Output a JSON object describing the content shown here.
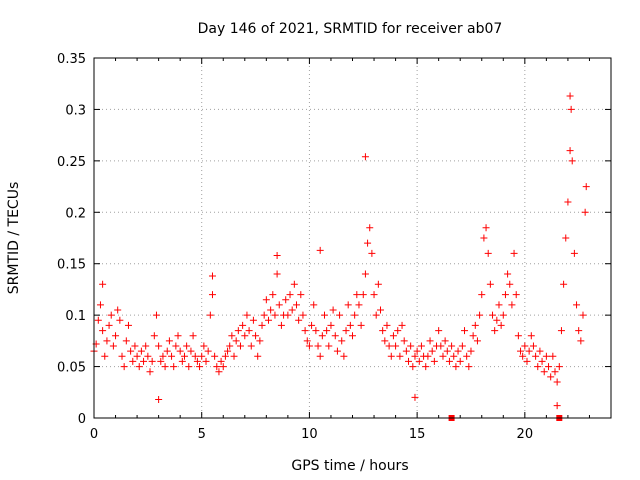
{
  "chart_data": {
    "type": "scatter",
    "title": "Day 146 of 2021, SRMTID for receiver ab07",
    "xlabel": "GPS time / hours",
    "ylabel": "SRMTID / TECUs",
    "xlim": [
      0,
      24
    ],
    "ylim": [
      0,
      0.35
    ],
    "xticks": [
      0,
      5,
      10,
      15,
      20
    ],
    "xtick_labels": [
      "0",
      "5",
      "10",
      "15",
      "20"
    ],
    "yticks": [
      0,
      0.05,
      0.1,
      0.15,
      0.2,
      0.25,
      0.3,
      0.35
    ],
    "ytick_labels": [
      "0",
      "0.05",
      "0.1",
      "0.15",
      "0.2",
      "0.25",
      "0.3",
      "0.35"
    ],
    "grid": true,
    "marker": "+",
    "color": "#ff0000",
    "series": [
      {
        "name": "SRMTID",
        "points": [
          [
            0.0,
            0.065
          ],
          [
            0.1,
            0.072
          ],
          [
            0.2,
            0.095
          ],
          [
            0.3,
            0.11
          ],
          [
            0.4,
            0.085
          ],
          [
            0.5,
            0.06
          ],
          [
            0.6,
            0.075
          ],
          [
            0.7,
            0.09
          ],
          [
            0.8,
            0.1
          ],
          [
            0.9,
            0.07
          ],
          [
            1.0,
            0.08
          ],
          [
            1.1,
            0.105
          ],
          [
            1.2,
            0.095
          ],
          [
            1.3,
            0.06
          ],
          [
            1.4,
            0.05
          ],
          [
            1.5,
            0.075
          ],
          [
            1.6,
            0.09
          ],
          [
            1.7,
            0.065
          ],
          [
            1.8,
            0.055
          ],
          [
            1.9,
            0.07
          ],
          [
            2.0,
            0.06
          ],
          [
            2.1,
            0.05
          ],
          [
            2.2,
            0.065
          ],
          [
            2.3,
            0.055
          ],
          [
            2.4,
            0.07
          ],
          [
            2.5,
            0.06
          ],
          [
            2.6,
            0.045
          ],
          [
            2.7,
            0.055
          ],
          [
            2.8,
            0.08
          ],
          [
            2.9,
            0.1
          ],
          [
            3.0,
            0.07
          ],
          [
            3.1,
            0.055
          ],
          [
            3.2,
            0.06
          ],
          [
            3.3,
            0.05
          ],
          [
            3.4,
            0.065
          ],
          [
            3.5,
            0.075
          ],
          [
            3.6,
            0.06
          ],
          [
            3.7,
            0.05
          ],
          [
            3.8,
            0.07
          ],
          [
            3.9,
            0.08
          ],
          [
            4.0,
            0.065
          ],
          [
            4.1,
            0.055
          ],
          [
            4.2,
            0.06
          ],
          [
            4.3,
            0.07
          ],
          [
            4.4,
            0.05
          ],
          [
            4.5,
            0.065
          ],
          [
            4.6,
            0.08
          ],
          [
            4.7,
            0.06
          ],
          [
            4.8,
            0.055
          ],
          [
            4.9,
            0.05
          ],
          [
            5.0,
            0.06
          ],
          [
            5.1,
            0.07
          ],
          [
            5.2,
            0.055
          ],
          [
            5.3,
            0.065
          ],
          [
            5.4,
            0.1
          ],
          [
            5.5,
            0.12
          ],
          [
            5.6,
            0.06
          ],
          [
            5.7,
            0.05
          ],
          [
            5.8,
            0.045
          ],
          [
            5.9,
            0.055
          ],
          [
            6.0,
            0.05
          ],
          [
            6.1,
            0.06
          ],
          [
            6.2,
            0.065
          ],
          [
            6.3,
            0.07
          ],
          [
            6.4,
            0.08
          ],
          [
            6.5,
            0.06
          ],
          [
            6.6,
            0.075
          ],
          [
            6.7,
            0.085
          ],
          [
            6.8,
            0.07
          ],
          [
            6.9,
            0.09
          ],
          [
            7.0,
            0.08
          ],
          [
            7.1,
            0.1
          ],
          [
            7.2,
            0.085
          ],
          [
            7.3,
            0.07
          ],
          [
            7.4,
            0.095
          ],
          [
            7.5,
            0.08
          ],
          [
            7.6,
            0.06
          ],
          [
            7.7,
            0.075
          ],
          [
            7.8,
            0.09
          ],
          [
            7.9,
            0.1
          ],
          [
            8.0,
            0.115
          ],
          [
            8.1,
            0.095
          ],
          [
            8.2,
            0.105
          ],
          [
            8.3,
            0.12
          ],
          [
            8.4,
            0.1
          ],
          [
            8.5,
            0.14
          ],
          [
            8.6,
            0.11
          ],
          [
            8.7,
            0.09
          ],
          [
            8.8,
            0.1
          ],
          [
            8.9,
            0.115
          ],
          [
            9.0,
            0.1
          ],
          [
            9.1,
            0.12
          ],
          [
            9.2,
            0.105
          ],
          [
            9.3,
            0.13
          ],
          [
            9.4,
            0.11
          ],
          [
            9.5,
            0.095
          ],
          [
            9.6,
            0.12
          ],
          [
            9.7,
            0.1
          ],
          [
            9.8,
            0.085
          ],
          [
            9.9,
            0.075
          ],
          [
            10.0,
            0.07
          ],
          [
            10.1,
            0.09
          ],
          [
            10.2,
            0.11
          ],
          [
            10.3,
            0.085
          ],
          [
            10.4,
            0.07
          ],
          [
            10.5,
            0.06
          ],
          [
            10.6,
            0.08
          ],
          [
            10.7,
            0.1
          ],
          [
            10.8,
            0.085
          ],
          [
            10.9,
            0.07
          ],
          [
            11.0,
            0.09
          ],
          [
            11.1,
            0.105
          ],
          [
            11.2,
            0.08
          ],
          [
            11.3,
            0.065
          ],
          [
            11.4,
            0.1
          ],
          [
            11.5,
            0.075
          ],
          [
            11.6,
            0.06
          ],
          [
            11.7,
            0.085
          ],
          [
            11.8,
            0.11
          ],
          [
            11.9,
            0.09
          ],
          [
            12.0,
            0.08
          ],
          [
            12.1,
            0.1
          ],
          [
            12.2,
            0.12
          ],
          [
            12.3,
            0.11
          ],
          [
            12.4,
            0.09
          ],
          [
            12.5,
            0.12
          ],
          [
            12.6,
            0.14
          ],
          [
            12.7,
            0.17
          ],
          [
            12.8,
            0.185
          ],
          [
            12.9,
            0.16
          ],
          [
            13.0,
            0.12
          ],
          [
            13.1,
            0.1
          ],
          [
            13.2,
            0.13
          ],
          [
            13.3,
            0.105
          ],
          [
            13.4,
            0.085
          ],
          [
            13.5,
            0.075
          ],
          [
            13.6,
            0.09
          ],
          [
            13.7,
            0.07
          ],
          [
            13.8,
            0.06
          ],
          [
            13.9,
            0.08
          ],
          [
            14.0,
            0.07
          ],
          [
            14.1,
            0.085
          ],
          [
            14.2,
            0.06
          ],
          [
            14.3,
            0.09
          ],
          [
            14.4,
            0.075
          ],
          [
            14.5,
            0.065
          ],
          [
            14.6,
            0.055
          ],
          [
            14.7,
            0.07
          ],
          [
            14.8,
            0.05
          ],
          [
            14.9,
            0.06
          ],
          [
            15.0,
            0.065
          ],
          [
            15.1,
            0.055
          ],
          [
            15.2,
            0.07
          ],
          [
            15.3,
            0.06
          ],
          [
            15.4,
            0.05
          ],
          [
            15.5,
            0.06
          ],
          [
            15.6,
            0.075
          ],
          [
            15.7,
            0.065
          ],
          [
            15.8,
            0.055
          ],
          [
            15.9,
            0.07
          ],
          [
            16.0,
            0.085
          ],
          [
            16.1,
            0.07
          ],
          [
            16.2,
            0.06
          ],
          [
            16.3,
            0.075
          ],
          [
            16.4,
            0.065
          ],
          [
            16.5,
            0.055
          ],
          [
            16.6,
            0.07
          ],
          [
            16.7,
            0.06
          ],
          [
            16.8,
            0.05
          ],
          [
            16.9,
            0.065
          ],
          [
            17.0,
            0.055
          ],
          [
            17.1,
            0.07
          ],
          [
            17.2,
            0.085
          ],
          [
            17.3,
            0.06
          ],
          [
            17.4,
            0.05
          ],
          [
            17.5,
            0.065
          ],
          [
            17.6,
            0.08
          ],
          [
            17.7,
            0.09
          ],
          [
            17.8,
            0.075
          ],
          [
            17.9,
            0.1
          ],
          [
            18.0,
            0.12
          ],
          [
            18.1,
            0.175
          ],
          [
            18.2,
            0.185
          ],
          [
            18.3,
            0.16
          ],
          [
            18.4,
            0.13
          ],
          [
            18.5,
            0.1
          ],
          [
            18.6,
            0.085
          ],
          [
            18.7,
            0.095
          ],
          [
            18.8,
            0.11
          ],
          [
            18.9,
            0.09
          ],
          [
            19.0,
            0.1
          ],
          [
            19.1,
            0.12
          ],
          [
            19.2,
            0.14
          ],
          [
            19.3,
            0.13
          ],
          [
            19.4,
            0.11
          ],
          [
            19.5,
            0.16
          ],
          [
            19.6,
            0.12
          ],
          [
            19.7,
            0.08
          ],
          [
            19.8,
            0.065
          ],
          [
            19.9,
            0.06
          ],
          [
            20.0,
            0.07
          ],
          [
            20.1,
            0.055
          ],
          [
            20.2,
            0.065
          ],
          [
            20.3,
            0.08
          ],
          [
            20.4,
            0.07
          ],
          [
            20.5,
            0.06
          ],
          [
            20.6,
            0.05
          ],
          [
            20.7,
            0.065
          ],
          [
            20.8,
            0.055
          ],
          [
            20.9,
            0.045
          ],
          [
            21.0,
            0.06
          ],
          [
            21.1,
            0.05
          ],
          [
            21.2,
            0.04
          ],
          [
            21.3,
            0.06
          ],
          [
            21.4,
            0.045
          ],
          [
            21.5,
            0.035
          ],
          [
            21.6,
            0.05
          ],
          [
            21.7,
            0.085
          ],
          [
            21.8,
            0.13
          ],
          [
            21.9,
            0.175
          ],
          [
            22.0,
            0.21
          ],
          [
            22.1,
            0.26
          ],
          [
            22.15,
            0.3
          ],
          [
            22.2,
            0.25
          ],
          [
            22.3,
            0.16
          ],
          [
            22.4,
            0.11
          ],
          [
            22.5,
            0.085
          ],
          [
            22.6,
            0.075
          ],
          [
            22.7,
            0.1
          ],
          [
            22.8,
            0.2
          ],
          [
            22.85,
            0.225
          ],
          [
            12.6,
            0.254
          ],
          [
            22.1,
            0.313
          ],
          [
            5.5,
            0.138
          ],
          [
            8.5,
            0.158
          ],
          [
            10.5,
            0.163
          ],
          [
            21.5,
            0.012
          ],
          [
            3.0,
            0.018
          ],
          [
            14.9,
            0.02
          ],
          [
            0.4,
            0.13
          ]
        ]
      },
      {
        "name": "markers-at-zero",
        "points": [
          [
            16.6,
            0.0
          ],
          [
            21.6,
            0.0
          ]
        ]
      }
    ]
  }
}
